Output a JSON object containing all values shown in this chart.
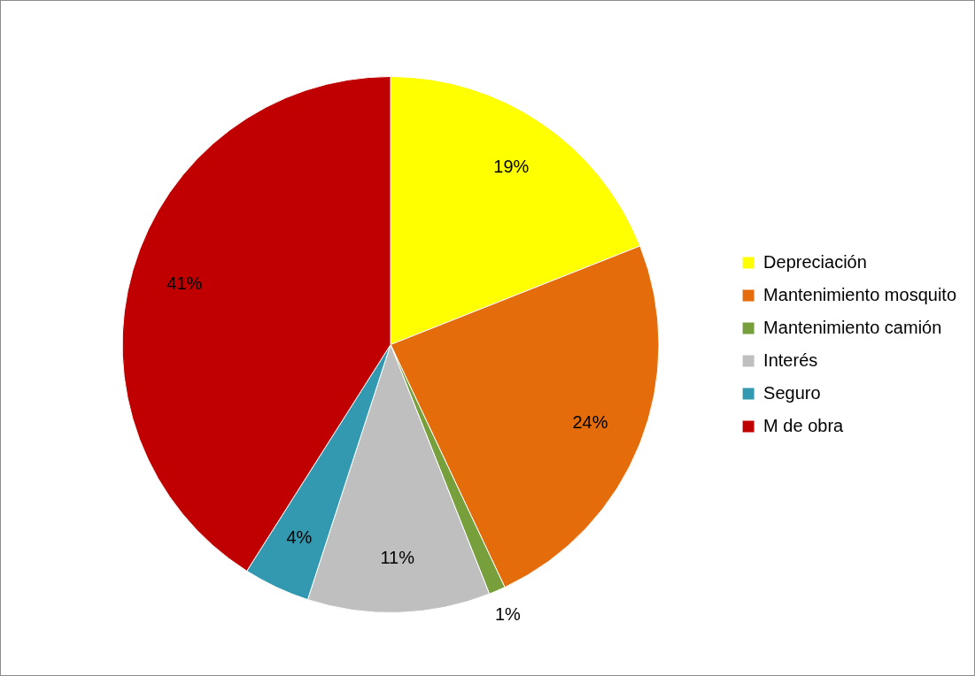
{
  "chart_data": {
    "type": "pie",
    "categories": [
      "Depreciación",
      "Mantenimiento mosquito",
      "Mantenimiento camión",
      "Interés",
      "Seguro",
      "M de obra"
    ],
    "values": [
      19,
      24,
      1,
      11,
      4,
      41
    ],
    "colors": [
      "#ffff00",
      "#e46c0a",
      "#77a03c",
      "#bfbfbf",
      "#3399b0",
      "#c00000"
    ],
    "value_labels": [
      "19%",
      "24%",
      "1%",
      "11%",
      "4%",
      "41%"
    ],
    "legend": "right"
  }
}
